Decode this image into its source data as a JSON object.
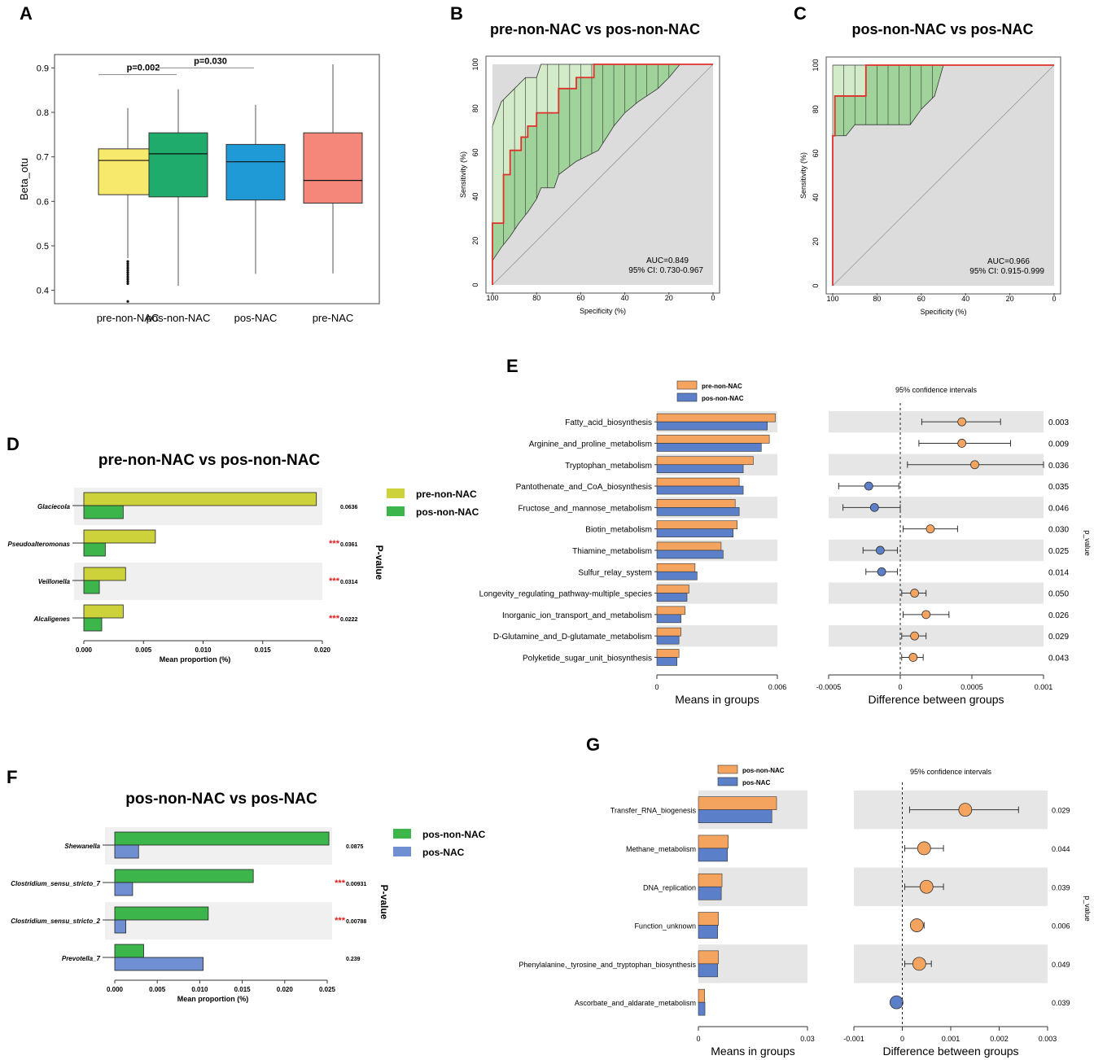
{
  "panel_labels": {
    "A": "A",
    "B": "B",
    "C": "C",
    "D": "D",
    "E": "E",
    "F": "F",
    "G": "G"
  },
  "chart_data": [
    {
      "id": "A",
      "type": "box",
      "title": "",
      "ylabel": "Beta_otu",
      "ylim": [
        0.37,
        0.93
      ],
      "yticks": [
        "0.4",
        "0.5",
        "0.6",
        "0.7",
        "0.8",
        "0.9"
      ],
      "categories": [
        "pre-non-NAC",
        "pos-non-NAC",
        "pos-NAC",
        "pre-NAC"
      ],
      "colors": [
        "#f6e96b",
        "#1fab6b",
        "#1f9ad6",
        "#f4877a"
      ],
      "boxes": [
        {
          "name": "pre-non-NAC",
          "whisker_low": 0.472,
          "q1": 0.615,
          "median": 0.692,
          "q3": 0.718,
          "whisker_high": 0.81,
          "outliers": [
            0.465,
            0.46,
            0.455,
            0.45,
            0.445,
            0.44,
            0.435,
            0.43,
            0.425,
            0.42,
            0.415,
            0.375
          ]
        },
        {
          "name": "pos-non-NAC",
          "whisker_low": 0.41,
          "q1": 0.61,
          "median": 0.707,
          "q3": 0.754,
          "whisker_high": 0.852,
          "outliers": []
        },
        {
          "name": "pos-NAC",
          "whisker_low": 0.437,
          "q1": 0.603,
          "median": 0.689,
          "q3": 0.728,
          "whisker_high": 0.817,
          "outliers": []
        },
        {
          "name": "pre-NAC",
          "whisker_low": 0.438,
          "q1": 0.596,
          "median": 0.647,
          "q3": 0.754,
          "whisker_high": 0.908,
          "outliers": []
        }
      ],
      "annotations": [
        {
          "label": "p=0.002",
          "from": "pre-non-NAC",
          "to": "pos-non-NAC",
          "y": 0.885
        },
        {
          "label": "p=0.030",
          "from": "pos-non-NAC",
          "to": "pos-NAC",
          "y": 0.9
        }
      ]
    },
    {
      "id": "B",
      "type": "roc",
      "title": "pre-non-NAC vs pos-non-NAC",
      "xlabel": "Specificity (%)",
      "ylabel": "Sensitivity (%)",
      "ticks": [
        "100",
        "80",
        "60",
        "40",
        "20",
        "0"
      ],
      "auc_text": "AUC=0.849",
      "ci_text": "95% CI: 0.730-0.967",
      "roc": [
        [
          100,
          0
        ],
        [
          100,
          11
        ],
        [
          100,
          28
        ],
        [
          95,
          28
        ],
        [
          95,
          50
        ],
        [
          92,
          50
        ],
        [
          92,
          61
        ],
        [
          87,
          61
        ],
        [
          87,
          67
        ],
        [
          84,
          67
        ],
        [
          84,
          72
        ],
        [
          80,
          72
        ],
        [
          80,
          78
        ],
        [
          70,
          78
        ],
        [
          70,
          89
        ],
        [
          62,
          89
        ],
        [
          62,
          94
        ],
        [
          54,
          94
        ],
        [
          54,
          100
        ],
        [
          0,
          100
        ]
      ],
      "ci_upper": [
        [
          100,
          72
        ],
        [
          96,
          83
        ],
        [
          90,
          89
        ],
        [
          85,
          94
        ],
        [
          80,
          94
        ],
        [
          78,
          100
        ],
        [
          0,
          100
        ]
      ],
      "ci_lower": [
        [
          100,
          11
        ],
        [
          96,
          17
        ],
        [
          92,
          22
        ],
        [
          88,
          28
        ],
        [
          84,
          33
        ],
        [
          80,
          39
        ],
        [
          78,
          44
        ],
        [
          72,
          44
        ],
        [
          70,
          50
        ],
        [
          62,
          56
        ],
        [
          52,
          61
        ],
        [
          45,
          72
        ],
        [
          40,
          78
        ],
        [
          34,
          83
        ],
        [
          25,
          89
        ],
        [
          20,
          94
        ],
        [
          15,
          100
        ],
        [
          0,
          100
        ]
      ]
    },
    {
      "id": "C",
      "type": "roc",
      "title": "pos-non-NAC vs pos-NAC",
      "xlabel": "Specificity (%)",
      "ylabel": "Sensitivity (%)",
      "ticks": [
        "100",
        "80",
        "60",
        "40",
        "20",
        "0"
      ],
      "auc_text": "AUC=0.966",
      "ci_text": "95% CI: 0.915-0.999",
      "roc": [
        [
          100,
          0
        ],
        [
          100,
          68
        ],
        [
          99,
          68
        ],
        [
          99,
          86
        ],
        [
          85,
          86
        ],
        [
          85,
          100
        ],
        [
          0,
          100
        ]
      ],
      "ci_upper": [
        [
          100,
          100
        ],
        [
          0,
          100
        ]
      ],
      "ci_lower": [
        [
          100,
          68
        ],
        [
          94,
          68
        ],
        [
          90,
          73
        ],
        [
          65,
          73
        ],
        [
          60,
          80
        ],
        [
          54,
          86
        ],
        [
          50,
          100
        ],
        [
          0,
          100
        ]
      ]
    },
    {
      "id": "D",
      "type": "bar",
      "title": "pre-non-NAC vs pos-non-NAC",
      "xlabel": "Mean proportion (%)",
      "ylabel": "P-value",
      "xlim": [
        0,
        0.02
      ],
      "xticks": [
        "0.000",
        "0.005",
        "0.010",
        "0.015",
        "0.020"
      ],
      "categories": [
        "Glaciecola",
        "Pseudoalteromonas",
        "Veillonella",
        "Alcaligenes"
      ],
      "series": [
        {
          "name": "pre-non-NAC",
          "color": "#cdd13a",
          "values": [
            0.0195,
            0.006,
            0.0035,
            0.0033
          ]
        },
        {
          "name": "pos-non-NAC",
          "color": "#3cb54a",
          "values": [
            0.0033,
            0.0018,
            0.0013,
            0.0015
          ]
        }
      ],
      "stars": [
        "",
        "***",
        "***",
        "***"
      ],
      "pvalues": [
        "0.0636",
        "0.0361",
        "0.0314",
        "0.0222"
      ]
    },
    {
      "id": "E",
      "type": "extended_error_bar",
      "legend": [
        "pre-non-NAC",
        "pos-non-NAC"
      ],
      "colors": [
        "#f5a460",
        "#5b7fc8"
      ],
      "ci_title": "95% confidence intervals",
      "left_xlabel": "Means in groups",
      "right_xlabel": "Difference between groups",
      "ylabel": "p_value",
      "left_xlim": [
        0,
        0.006
      ],
      "left_xticks": [
        "0",
        "0.006"
      ],
      "right_xlim": [
        -0.0005,
        0.001
      ],
      "right_xticks": [
        "-0.0005",
        "0",
        "0.0005",
        "0.001"
      ],
      "categories": [
        "Fatty_acid_biosynthesis",
        "Arginine_and_proline_metabolism",
        "Tryptophan_metabolism",
        "Pantothenate_and_CoA_biosynthesis",
        "Fructose_and_mannose_metabolism",
        "Biotin_metabolism",
        "Thiamine_metabolism",
        "Sulfur_relay_system",
        "Longevity_regulating_pathway-multiple_species",
        "Inorganic_ion_transport_and_metabolism",
        "D-Glutamine_and_D-glutamate_metabolism",
        "Polyketide_sugar_unit_biosynthesis"
      ],
      "series": [
        {
          "name": "pre-non-NAC",
          "values": [
            0.0059,
            0.0056,
            0.0048,
            0.0041,
            0.0039,
            0.004,
            0.0032,
            0.0019,
            0.0016,
            0.0014,
            0.0012,
            0.0011
          ]
        },
        {
          "name": "pos-non-NAC",
          "values": [
            0.0055,
            0.0052,
            0.0043,
            0.0043,
            0.0041,
            0.0038,
            0.0033,
            0.002,
            0.0015,
            0.0012,
            0.0011,
            0.001
          ]
        }
      ],
      "diff": [
        0.00043,
        0.00043,
        0.00052,
        -0.00022,
        -0.00018,
        0.00021,
        -0.00014,
        -0.00013,
        0.0001,
        0.00018,
        0.0001,
        9e-05
      ],
      "ci_low": [
        0.00015,
        0.00013,
        5e-05,
        -0.00043,
        -0.0004,
        2e-05,
        -0.00026,
        -0.00024,
        1e-05,
        2e-05,
        1e-05,
        1e-05
      ],
      "ci_high": [
        0.0007,
        0.00077,
        0.001,
        -1e-05,
        0,
        0.0004,
        -2e-05,
        -2e-05,
        0.00018,
        0.00034,
        0.00018,
        0.00016
      ],
      "pvalues": [
        "0.003",
        "0.009",
        "0.036",
        "0.035",
        "0.046",
        "0.030",
        "0.025",
        "0.014",
        "0.050",
        "0.026",
        "0.029",
        "0.043"
      ]
    },
    {
      "id": "F",
      "type": "bar",
      "title": "pos-non-NAC vs pos-NAC",
      "xlabel": "Mean proportion (%)",
      "ylabel": "P-value",
      "xlim": [
        0,
        0.025
      ],
      "xticks": [
        "0.000",
        "0.005",
        "0.010",
        "0.015",
        "0.020",
        "0.025"
      ],
      "categories": [
        "Shewanella",
        "Clostridium_sensu_stricto_7",
        "Clostridium_sensu_stricto_2",
        "Prevotella_7"
      ],
      "series": [
        {
          "name": "pos-non-NAC",
          "color": "#3cb54a",
          "values": [
            0.0252,
            0.0163,
            0.011,
            0.0034
          ]
        },
        {
          "name": "pos-NAC",
          "color": "#6f8fd2",
          "values": [
            0.0028,
            0.0021,
            0.0013,
            0.0104
          ]
        }
      ],
      "stars": [
        "",
        "***",
        "***",
        ""
      ],
      "pvalues": [
        "0.0875",
        "0.00931",
        "0.00788",
        "0.239"
      ]
    },
    {
      "id": "G",
      "type": "extended_error_bar",
      "legend": [
        "pos-non-NAC",
        "pos-NAC"
      ],
      "colors": [
        "#f5a460",
        "#5b7fc8"
      ],
      "ci_title": "95% confidence intervals",
      "left_xlabel": "Means in groups",
      "right_xlabel": "Difference between groups",
      "ylabel": "p_value",
      "left_xlim": [
        0,
        0.03
      ],
      "left_xticks": [
        "0",
        "0.03"
      ],
      "right_xlim": [
        -0.001,
        0.003
      ],
      "right_xticks": [
        "-0.001",
        "0",
        "0.001",
        "0.002",
        "0.003"
      ],
      "categories": [
        "Transfer_RNA_biogenesis",
        "Methane_metabolism",
        "DNA_replication",
        "Function_unknown",
        "Phenylalanine,_tyrosine_and_tryptophan_biosynthesis",
        "Ascorbate_and_aldarate_metabolism"
      ],
      "series": [
        {
          "name": "pos-non-NAC",
          "values": [
            0.0215,
            0.0082,
            0.0065,
            0.0055,
            0.0055,
            0.0017
          ]
        },
        {
          "name": "pos-NAC",
          "values": [
            0.0202,
            0.008,
            0.0063,
            0.0053,
            0.0053,
            0.0018
          ]
        }
      ],
      "diff": [
        0.0013,
        0.00045,
        0.0005,
        0.0003,
        0.00035,
        -0.00012
      ],
      "ci_low": [
        0.00015,
        5e-05,
        5e-05,
        0.0002,
        5e-05,
        -0.00014
      ],
      "ci_high": [
        0.0024,
        0.00085,
        0.00085,
        0.00045,
        0.0006,
        -0.0001
      ],
      "pvalues": [
        "0.029",
        "0.044",
        "0.039",
        "0.006",
        "0.049",
        "0.039"
      ]
    }
  ]
}
